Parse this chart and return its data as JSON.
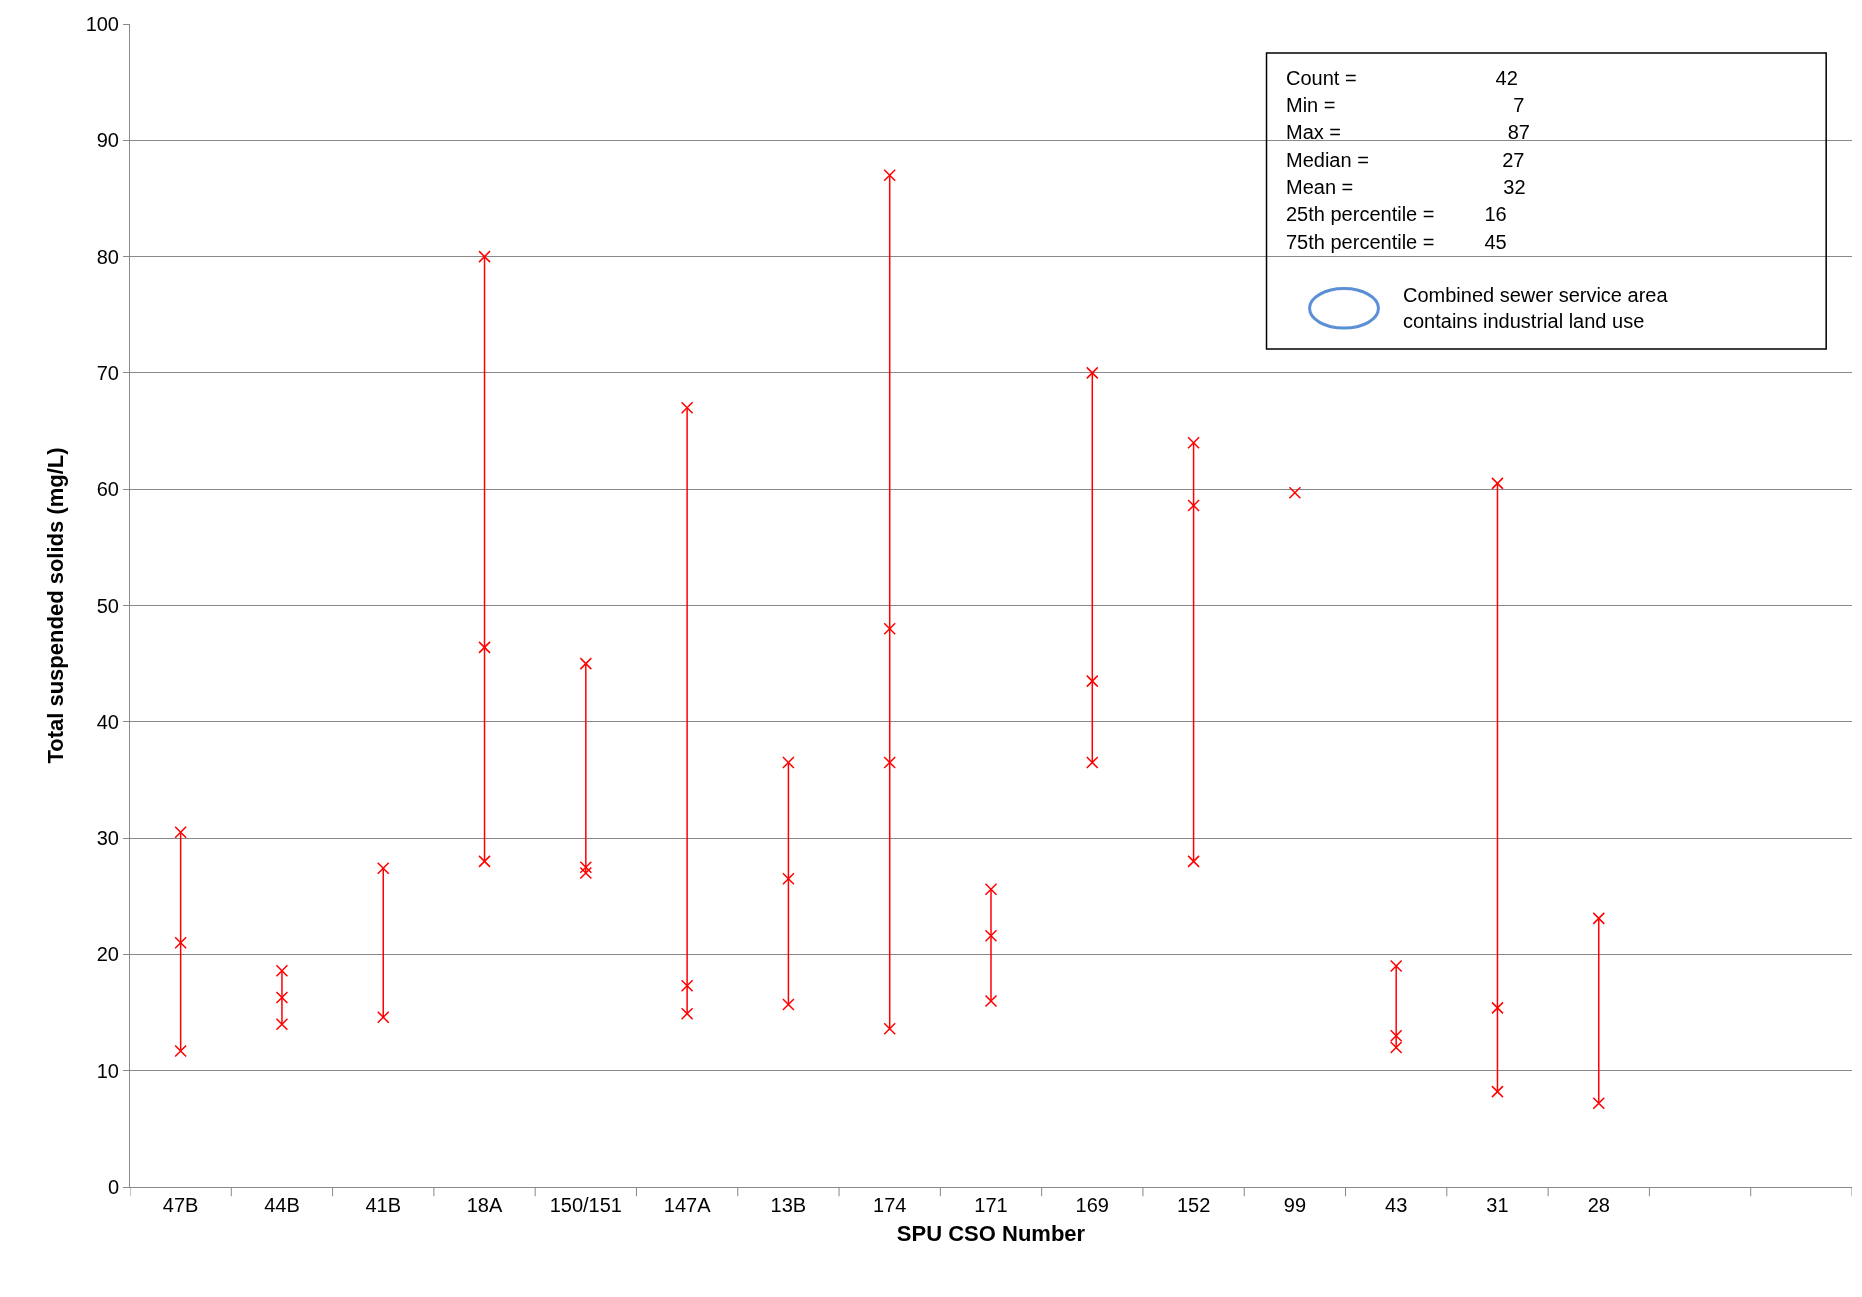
{
  "chart_data": {
    "type": "line",
    "xlabel": "SPU CSO Number",
    "ylabel": "Total suspended solids (mg/L)",
    "categories": [
      "47B",
      "44B",
      "41B",
      "18A",
      "150/151",
      "147A",
      "13B",
      "174",
      "171",
      "169",
      "152",
      "99",
      "43",
      "31",
      "28",
      null,
      null
    ],
    "series": [
      {
        "color": "#ff0000",
        "x": [
          "47B",
          "47B",
          "47B"
        ],
        "values": [
          30.5,
          21,
          11.7
        ]
      },
      {
        "color": "#ff0000",
        "x": [
          "44B",
          "44B",
          "44B"
        ],
        "values": [
          18.6,
          16.3,
          14
        ]
      },
      {
        "color": "#ff0000",
        "x": [
          "41B",
          "41B"
        ],
        "values": [
          27.4,
          14.6
        ]
      },
      {
        "color": "#ff0000",
        "x": [
          "18A",
          "18A",
          "18A"
        ],
        "values": [
          80,
          46.4,
          28
        ]
      },
      {
        "color": "#ff0000",
        "x": [
          "150/151",
          "150/151",
          "150/151"
        ],
        "values": [
          45,
          27.5,
          27
        ]
      },
      {
        "color": "#ff0000",
        "x": [
          "147A",
          "147A",
          "147A"
        ],
        "values": [
          67,
          17.3,
          14.9
        ]
      },
      {
        "color": "#ff0000",
        "x": [
          "13B",
          "13B",
          "13B"
        ],
        "values": [
          36.5,
          26.5,
          15.7
        ]
      },
      {
        "color": "#ff0000",
        "x": [
          "174",
          "174",
          "174",
          "174"
        ],
        "values": [
          87,
          48,
          36.5,
          13.6
        ]
      },
      {
        "color": "#ff0000",
        "x": [
          "171",
          "171",
          "171"
        ],
        "values": [
          25.6,
          21.6,
          16
        ]
      },
      {
        "color": "#ff0000",
        "x": [
          "169",
          "169",
          "169"
        ],
        "values": [
          70,
          43.5,
          36.5
        ]
      },
      {
        "color": "#ff0000",
        "x": [
          "152",
          "152",
          "152"
        ],
        "values": [
          64,
          58.6,
          28
        ]
      },
      {
        "color": "#ff0000",
        "x": [
          "99"
        ],
        "values": [
          59.7
        ]
      },
      {
        "color": "#ff0000",
        "x": [
          "43",
          "43",
          "43"
        ],
        "values": [
          19,
          13,
          12
        ]
      },
      {
        "color": "#ff0000",
        "x": [
          "31",
          "31",
          "31"
        ],
        "values": [
          60.5,
          15.4,
          8.2
        ]
      },
      {
        "color": "#ff0000",
        "x": [
          "28",
          "28"
        ],
        "values": [
          23.1,
          7.2
        ]
      }
    ],
    "ylim": [
      0,
      100
    ],
    "yticks": [
      0,
      10,
      20,
      30,
      40,
      50,
      60,
      70,
      80,
      90,
      100
    ],
    "grid": "y",
    "marker": "cross",
    "line_style": "solid",
    "annotations": [
      "Count =                         42",
      "Min =                                7",
      "Max =                              87",
      "Median =                        27",
      "Mean =                           32",
      "25th percentile =         16",
      "75th percentile =         45",
      "Combined sewer service area\ncontains industrial land use"
    ]
  }
}
